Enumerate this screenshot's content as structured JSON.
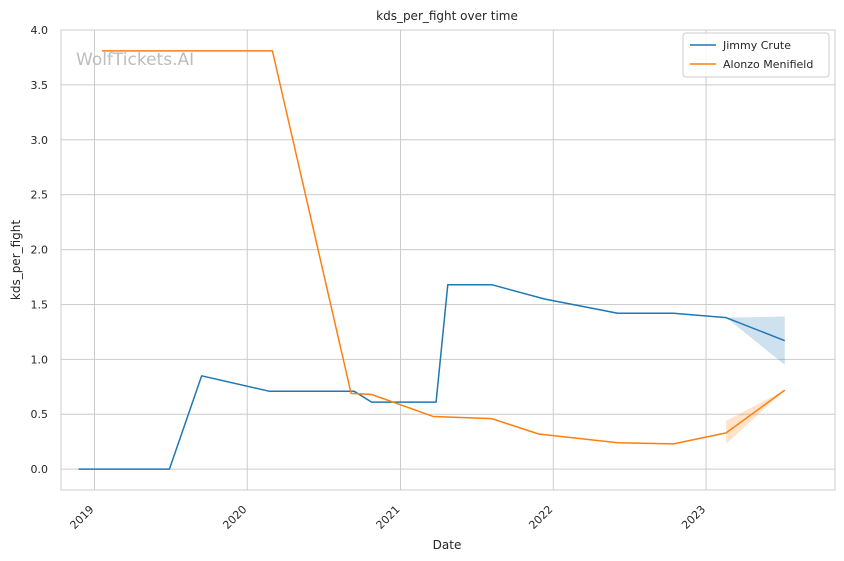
{
  "watermark": "WolfTickets.AI",
  "chart_data": {
    "type": "line",
    "title": "kds_per_fight over time",
    "xlabel": "Date",
    "ylabel": "kds_per_fight",
    "xlim": [
      "2018-10-13",
      "2023-11-05"
    ],
    "ylim": [
      -0.19,
      4.0
    ],
    "x_ticks": [
      {
        "date": "2019-01-01",
        "label": "2019"
      },
      {
        "date": "2020-01-01",
        "label": "2020"
      },
      {
        "date": "2021-01-01",
        "label": "2021"
      },
      {
        "date": "2022-01-01",
        "label": "2022"
      },
      {
        "date": "2023-01-01",
        "label": "2023"
      }
    ],
    "y_ticks": [
      0.0,
      0.5,
      1.0,
      1.5,
      2.0,
      2.5,
      3.0,
      3.5,
      4.0
    ],
    "y_tick_labels": [
      "0.0",
      "0.5",
      "1.0",
      "1.5",
      "2.0",
      "2.5",
      "3.0",
      "3.5",
      "4.0"
    ],
    "grid": true,
    "legend_position": "top-right",
    "series": [
      {
        "name": "Jimmy Crute",
        "color": "#1f77b4",
        "points": [
          {
            "x": "2018-11-24",
            "y": 0.0
          },
          {
            "x": "2019-06-29",
            "y": 0.0
          },
          {
            "x": "2019-09-14",
            "y": 0.85
          },
          {
            "x": "2020-02-22",
            "y": 0.71
          },
          {
            "x": "2020-09-12",
            "y": 0.71
          },
          {
            "x": "2020-10-24",
            "y": 0.61
          },
          {
            "x": "2021-03-27",
            "y": 0.61
          },
          {
            "x": "2021-04-24",
            "y": 1.68
          },
          {
            "x": "2021-08-07",
            "y": 1.68
          },
          {
            "x": "2021-12-11",
            "y": 1.55
          },
          {
            "x": "2022-06-04",
            "y": 1.42
          },
          {
            "x": "2022-10-15",
            "y": 1.42
          },
          {
            "x": "2023-02-18",
            "y": 1.38
          },
          {
            "x": "2023-07-08",
            "y": 1.17
          }
        ],
        "band": {
          "x": [
            "2023-02-18",
            "2023-07-08"
          ],
          "low": [
            1.38,
            0.95
          ],
          "high": [
            1.38,
            1.39
          ]
        }
      },
      {
        "name": "Alonzo Menifield",
        "color": "#ff7f0e",
        "points": [
          {
            "x": "2019-01-19",
            "y": 3.81
          },
          {
            "x": "2020-03-01",
            "y": 3.81
          },
          {
            "x": "2020-09-05",
            "y": 0.69
          },
          {
            "x": "2020-10-24",
            "y": 0.68
          },
          {
            "x": "2021-03-20",
            "y": 0.48
          },
          {
            "x": "2021-08-07",
            "y": 0.46
          },
          {
            "x": "2021-11-27",
            "y": 0.32
          },
          {
            "x": "2022-06-04",
            "y": 0.24
          },
          {
            "x": "2022-10-15",
            "y": 0.23
          },
          {
            "x": "2023-02-18",
            "y": 0.33
          },
          {
            "x": "2023-07-08",
            "y": 0.72
          }
        ],
        "band": {
          "x": [
            "2023-02-18",
            "2023-07-08"
          ],
          "low": [
            0.23,
            0.72
          ],
          "high": [
            0.44,
            0.72
          ]
        }
      }
    ]
  }
}
